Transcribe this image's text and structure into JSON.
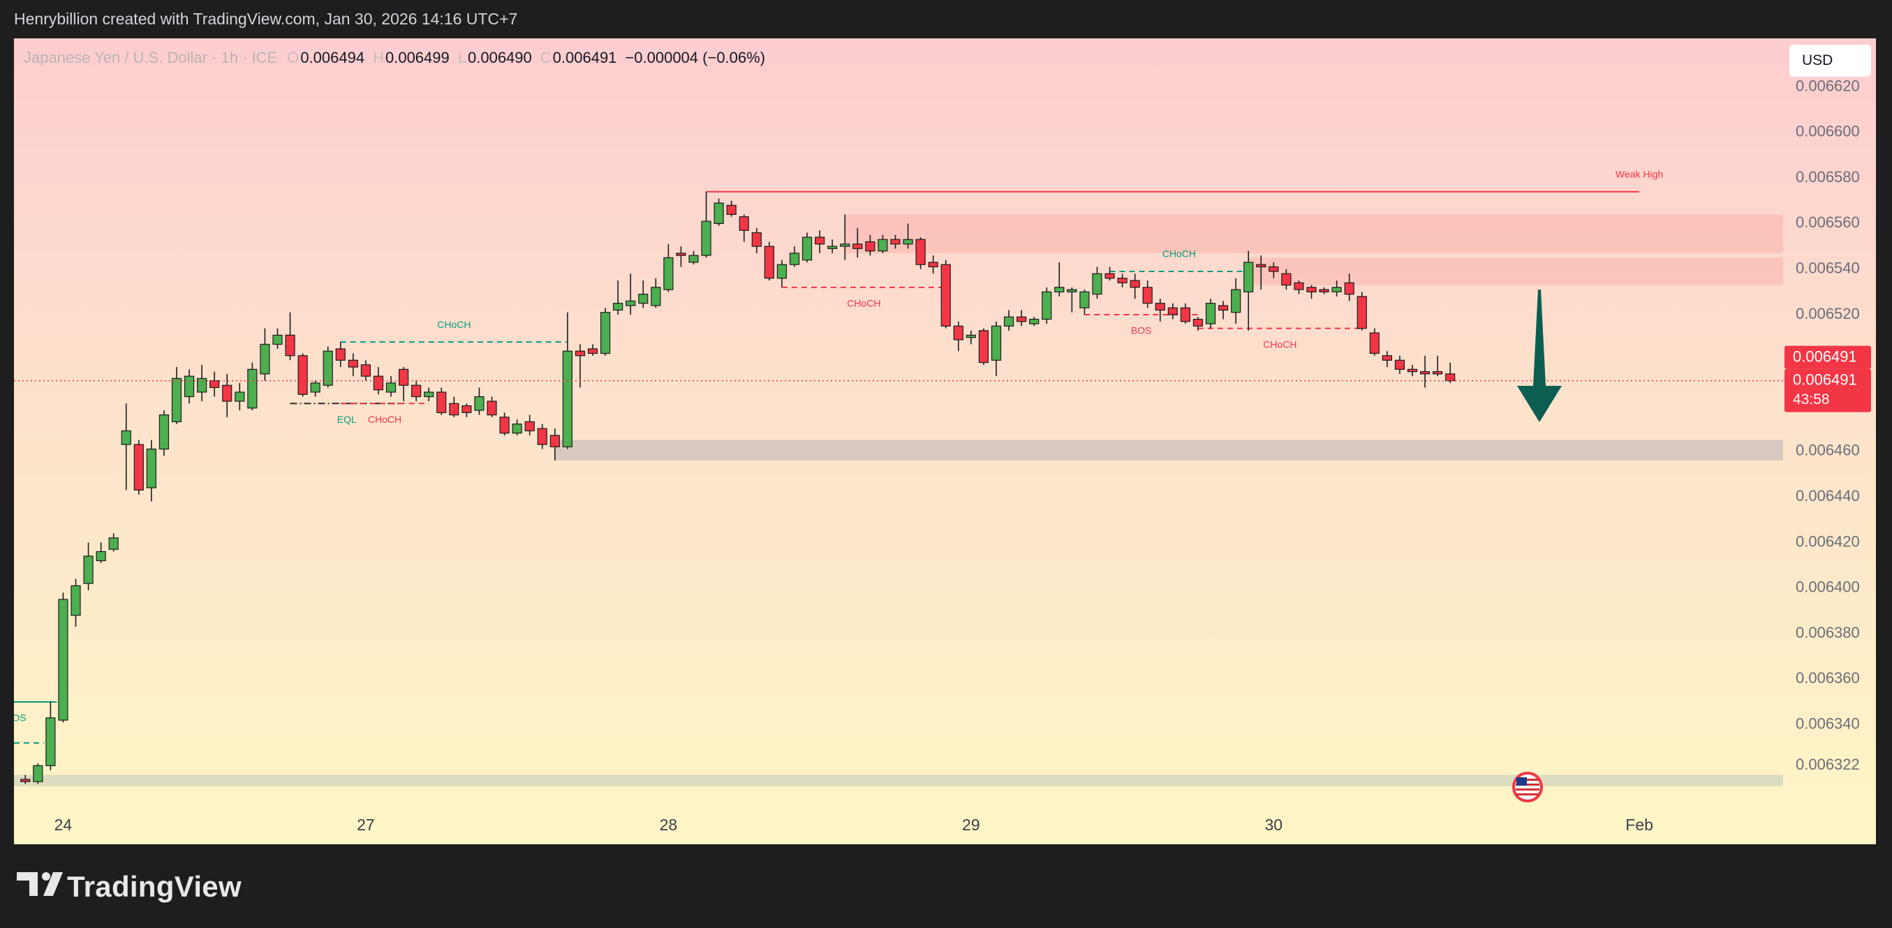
{
  "header": {
    "attribution": "Henrybillion created with TradingView.com, Jan 30, 2026 14:16 UTC+7"
  },
  "legend": {
    "symbol": "Japanese Yen / U.S. Dollar · 1h · ICE",
    "open_key": "O",
    "open": "0.006494",
    "high_key": "H",
    "high": "0.006499",
    "low_key": "L",
    "low": "0.006490",
    "close_key": "C",
    "close": "0.006491",
    "change": "−0.000004 (−0.06%)"
  },
  "currency_button": "USD",
  "footer": {
    "brand": "TradingView"
  },
  "chart_data": {
    "type": "candlestick",
    "x": [
      -3,
      -2,
      -1,
      0,
      1,
      2,
      3,
      4,
      5,
      6,
      7,
      8,
      9,
      10,
      11,
      12,
      13,
      14,
      15,
      16,
      17,
      18,
      19,
      20,
      21,
      22,
      23,
      24,
      25,
      26,
      27,
      28,
      29,
      30,
      31,
      32,
      33,
      34,
      35,
      36,
      37,
      38,
      39,
      40,
      41,
      42,
      43,
      44,
      45,
      46,
      47,
      48,
      49,
      50,
      51,
      52,
      53,
      54,
      55,
      56,
      57,
      58,
      59,
      60,
      61,
      62,
      63,
      64,
      65,
      66,
      67,
      68,
      69,
      70,
      71,
      72,
      73,
      74,
      75,
      76,
      77,
      78,
      79,
      80,
      81,
      82,
      83,
      84,
      85,
      86,
      87,
      88,
      89,
      90,
      91,
      92,
      93,
      94,
      95,
      96,
      97,
      98,
      99,
      100,
      101,
      102,
      103,
      104,
      105,
      106,
      107,
      108,
      109,
      110
    ],
    "open": [
      0.006316,
      0.006315,
      0.006322,
      0.006342,
      0.006388,
      0.006402,
      0.006412,
      0.006417,
      0.006463,
      0.006463,
      0.006444,
      0.006461,
      0.006473,
      0.006484,
      0.006486,
      0.006491,
      0.006489,
      0.006482,
      0.006479,
      0.006494,
      0.006507,
      0.006511,
      0.006502,
      0.006486,
      0.006489,
      0.006505,
      0.0065,
      0.006498,
      0.006493,
      0.006486,
      0.006496,
      0.006489,
      0.006484,
      0.006486,
      0.006481,
      0.00648,
      0.006478,
      0.006482,
      0.006475,
      0.006468,
      0.006473,
      0.00647,
      0.006467,
      0.006462,
      0.006504,
      0.006505,
      0.006503,
      0.006522,
      0.006524,
      0.006525,
      0.006524,
      0.006531,
      0.006547,
      0.006543,
      0.006546,
      0.00656,
      0.006568,
      0.006563,
      0.006556,
      0.00655,
      0.006536,
      0.006542,
      0.006544,
      0.006554,
      0.006549,
      0.00655,
      0.006551,
      0.006552,
      0.006548,
      0.006553,
      0.006551,
      0.006553,
      0.006543,
      0.006542,
      0.006515,
      0.00651,
      0.006513,
      0.0065,
      0.006515,
      0.006519,
      0.006516,
      0.006518,
      0.00653,
      0.00653,
      0.006523,
      0.006529,
      0.006538,
      0.006536,
      0.006535,
      0.006532,
      0.006525,
      0.006523,
      0.006523,
      0.006518,
      0.006516,
      0.006524,
      0.006521,
      0.00653,
      0.006542,
      0.006541,
      0.006538,
      0.006534,
      0.006532,
      0.006531,
      0.00653,
      0.006534,
      0.006528,
      0.006512,
      0.006502,
      0.0065,
      0.006496,
      0.006495,
      0.006495,
      0.006494
    ],
    "high": [
      0.006318,
      0.006323,
      0.00635,
      0.006398,
      0.006404,
      0.00642,
      0.00642,
      0.006424,
      0.006481,
      0.006465,
      0.006465,
      0.006478,
      0.006497,
      0.006496,
      0.006498,
      0.006495,
      0.006494,
      0.00649,
      0.006499,
      0.006514,
      0.006514,
      0.006521,
      0.006503,
      0.006491,
      0.006506,
      0.006508,
      0.006503,
      0.0065,
      0.006497,
      0.006493,
      0.006497,
      0.006491,
      0.006488,
      0.006488,
      0.006484,
      0.006481,
      0.006488,
      0.006484,
      0.006477,
      0.006474,
      0.006476,
      0.006472,
      0.00647,
      0.006521,
      0.006507,
      0.006507,
      0.006523,
      0.006535,
      0.006538,
      0.006535,
      0.006536,
      0.006551,
      0.00655,
      0.006548,
      0.006574,
      0.006571,
      0.00657,
      0.006564,
      0.006558,
      0.006552,
      0.006544,
      0.00655,
      0.006556,
      0.006557,
      0.006553,
      0.006564,
      0.006558,
      0.006555,
      0.006555,
      0.006555,
      0.00656,
      0.006554,
      0.006546,
      0.006544,
      0.006517,
      0.006513,
      0.006514,
      0.006517,
      0.006522,
      0.006522,
      0.006519,
      0.006532,
      0.006543,
      0.006532,
      0.006531,
      0.006541,
      0.006541,
      0.006538,
      0.006538,
      0.006535,
      0.006527,
      0.006525,
      0.006525,
      0.006519,
      0.006527,
      0.006526,
      0.006536,
      0.006548,
      0.006546,
      0.006543,
      0.00654,
      0.006535,
      0.006533,
      0.006532,
      0.006535,
      0.006538,
      0.00653,
      0.006514,
      0.006504,
      0.006502,
      0.006498,
      0.006502,
      0.006502,
      0.006499
    ],
    "low": [
      0.006314,
      0.006314,
      0.00632,
      0.006341,
      0.006383,
      0.006399,
      0.006411,
      0.006416,
      0.006443,
      0.006441,
      0.006438,
      0.006458,
      0.006472,
      0.006481,
      0.006482,
      0.006484,
      0.006475,
      0.006478,
      0.006478,
      0.006491,
      0.006505,
      0.0065,
      0.006484,
      0.006484,
      0.006488,
      0.006497,
      0.006493,
      0.006491,
      0.006485,
      0.006484,
      0.006482,
      0.006482,
      0.006482,
      0.006476,
      0.006475,
      0.006475,
      0.006476,
      0.006475,
      0.006467,
      0.006467,
      0.006467,
      0.006461,
      0.006456,
      0.006461,
      0.006488,
      0.006502,
      0.006502,
      0.00652,
      0.00652,
      0.006523,
      0.006523,
      0.00653,
      0.006541,
      0.006542,
      0.006545,
      0.006559,
      0.006563,
      0.006552,
      0.006547,
      0.006535,
      0.006532,
      0.006541,
      0.006543,
      0.006547,
      0.006547,
      0.006544,
      0.006545,
      0.006546,
      0.006547,
      0.006549,
      0.006549,
      0.00654,
      0.006538,
      0.006514,
      0.006504,
      0.006507,
      0.006498,
      0.006493,
      0.006513,
      0.006515,
      0.006515,
      0.006516,
      0.006528,
      0.006521,
      0.00652,
      0.006527,
      0.006535,
      0.006532,
      0.006527,
      0.006523,
      0.006517,
      0.006518,
      0.006516,
      0.006513,
      0.006514,
      0.006518,
      0.006516,
      0.006513,
      0.006531,
      0.006536,
      0.006531,
      0.006529,
      0.006527,
      0.006529,
      0.006528,
      0.006526,
      0.006513,
      0.006502,
      0.006497,
      0.006494,
      0.006493,
      0.006488,
      0.006493,
      0.00649
    ],
    "close": [
      0.006315,
      0.006322,
      0.006343,
      0.006395,
      0.006401,
      0.006414,
      0.006416,
      0.006422,
      0.006469,
      0.006443,
      0.006461,
      0.006476,
      0.006492,
      0.006493,
      0.006492,
      0.006488,
      0.006482,
      0.006486,
      0.006496,
      0.006507,
      0.006511,
      0.006502,
      0.006485,
      0.00649,
      0.006504,
      0.0065,
      0.006497,
      0.006493,
      0.006487,
      0.00649,
      0.006489,
      0.006484,
      0.006486,
      0.006477,
      0.006476,
      0.006477,
      0.006484,
      0.006476,
      0.006468,
      0.006472,
      0.006469,
      0.006463,
      0.006462,
      0.006504,
      0.006502,
      0.006503,
      0.006521,
      0.006525,
      0.006526,
      0.006529,
      0.006532,
      0.006545,
      0.006546,
      0.006546,
      0.006561,
      0.006569,
      0.006564,
      0.006557,
      0.00655,
      0.006536,
      0.006542,
      0.006547,
      0.006554,
      0.006551,
      0.00655,
      0.006551,
      0.006549,
      0.006548,
      0.006553,
      0.006551,
      0.006553,
      0.006542,
      0.006541,
      0.006515,
      0.006509,
      0.006511,
      0.006499,
      0.006515,
      0.006519,
      0.006517,
      0.006518,
      0.00653,
      0.006532,
      0.006531,
      0.00653,
      0.006538,
      0.006536,
      0.006534,
      0.006532,
      0.006525,
      0.006522,
      0.00652,
      0.006517,
      0.006515,
      0.006525,
      0.006522,
      0.006531,
      0.006543,
      0.006541,
      0.006539,
      0.006533,
      0.006531,
      0.00653,
      0.00653,
      0.006532,
      0.006529,
      0.006514,
      0.006503,
      0.0065,
      0.006496,
      0.006495,
      0.006494,
      0.006494,
      0.006491
    ],
    "up_color": "#4caf50",
    "down_color": "#f23645",
    "wick_color": "#1c1c1c",
    "xlim": [
      -3.9,
      136.4
    ],
    "xticks": [
      {
        "value": 0,
        "label": "24"
      },
      {
        "value": 24,
        "label": "27"
      },
      {
        "value": 48,
        "label": "28"
      },
      {
        "value": 72,
        "label": "29"
      },
      {
        "value": 96,
        "label": "30"
      },
      {
        "value": 125,
        "label": "Feb"
      }
    ],
    "ylim": [
      0.0062875,
      0.0066413
    ],
    "yticks": [
      {
        "value": 0.00662,
        "label": "0.006620"
      },
      {
        "value": 0.0066,
        "label": "0.006600"
      },
      {
        "value": 0.00658,
        "label": "0.006580"
      },
      {
        "value": 0.00656,
        "label": "0.006560"
      },
      {
        "value": 0.00654,
        "label": "0.006540"
      },
      {
        "value": 0.00652,
        "label": "0.006520"
      },
      {
        "value": 0.00646,
        "label": "0.006460"
      },
      {
        "value": 0.00644,
        "label": "0.006440"
      },
      {
        "value": 0.00642,
        "label": "0.006420"
      },
      {
        "value": 0.0064,
        "label": "0.006400"
      },
      {
        "value": 0.00638,
        "label": "0.006380"
      },
      {
        "value": 0.00636,
        "label": "0.006360"
      },
      {
        "value": 0.00634,
        "label": "0.006340"
      },
      0.006322
    ],
    "grid": false,
    "zones": [
      {
        "x": [
          62,
          136.4
        ],
        "y": [
          0.006547,
          0.006564
        ],
        "color": "rgba(242,54,69,0.13)"
      },
      {
        "x": [
          94,
          136.4
        ],
        "y": [
          0.006533,
          0.006545
        ],
        "color": "rgba(242,54,69,0.13)"
      },
      {
        "x": [
          39,
          136.4
        ],
        "y": [
          0.006456,
          0.006465
        ],
        "color": "rgba(120,130,170,0.28)"
      },
      {
        "x": [
          -3.9,
          136.4
        ],
        "y": [
          0.006313,
          0.006318
        ],
        "color": "rgba(120,150,170,0.25)"
      }
    ],
    "levels": [
      {
        "label": "Weak High",
        "value": 0.006574,
        "x": [
          51,
          125
        ],
        "color": "#f23645",
        "style": "solid",
        "label_at": "end",
        "label_side": "above"
      },
      {
        "label": "CHoCH",
        "value": 0.006508,
        "x": [
          22,
          40
        ],
        "color": "#089981",
        "style": "dashed",
        "label_side": "above"
      },
      {
        "label": "EQL",
        "value": 0.006481,
        "x": [
          18,
          27
        ],
        "color": "#2a2a2a",
        "label_color": "#089981",
        "style": "dashdot",
        "label_side": "below"
      },
      {
        "label": "CHoCH",
        "value": 0.006481,
        "x": [
          22,
          29
        ],
        "color": "#f23645",
        "style": "dashed",
        "label_side": "below"
      },
      {
        "label": "CHoCH",
        "value": 0.006532,
        "x": [
          57,
          70
        ],
        "color": "#f23645",
        "style": "dashed",
        "label_side": "below"
      },
      {
        "label": "CHoCH",
        "value": 0.006539,
        "x": [
          83,
          94
        ],
        "color": "#089981",
        "style": "dashed",
        "label_side": "above"
      },
      {
        "label": "BOS",
        "value": 0.00652,
        "x": [
          81,
          90
        ],
        "color": "#f23645",
        "style": "dashed",
        "label_side": "below"
      },
      {
        "label": "CHoCH",
        "value": 0.006514,
        "x": [
          90,
          103
        ],
        "color": "#f23645",
        "style": "dashed",
        "label_side": "below"
      },
      {
        "label": "BOS",
        "value": 0.00635,
        "x": [
          -7,
          -0.5
        ],
        "color": "#089981",
        "style": "solid",
        "label_side": "below"
      },
      {
        "value": 0.006332,
        "x": [
          -7,
          -1.5
        ],
        "color": "#089981",
        "style": "dashed"
      }
    ],
    "price_line_color": "#f23645",
    "price_tags": [
      {
        "value": 0.006491,
        "label": "0.006491"
      },
      {
        "value": 0.006491,
        "label": "0.006491"
      }
    ],
    "countdown": "43:58"
  }
}
